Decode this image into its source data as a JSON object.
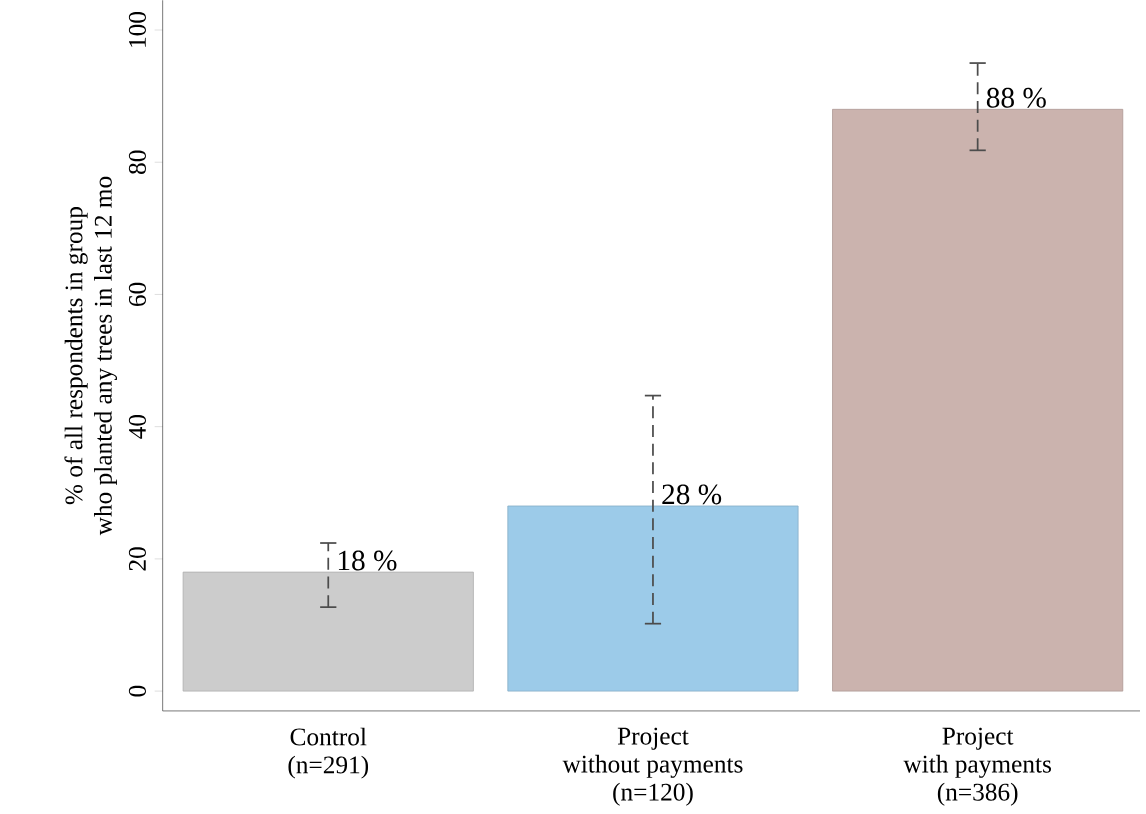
{
  "chart_data": {
    "type": "bar",
    "ylabel": "% of all respondents in group\nwho planted any trees in last 12 mo",
    "categories": [
      "Control\n(n=291)",
      "Project\nwithout payments\n(n=120)",
      "Project\nwith payments\n(n=386)"
    ],
    "values": [
      18,
      28,
      88
    ],
    "colors": [
      "#cccccc",
      "#9ccbe9",
      "#cbb3ae"
    ],
    "errors": [
      [
        12.7,
        22.4
      ],
      [
        10.2,
        44.7
      ],
      [
        81.8,
        95.0
      ]
    ],
    "value_labels": [
      "18 %",
      "28 %",
      "88 %"
    ],
    "ylim": [
      -3,
      104.5
    ],
    "yticks": [
      0,
      20,
      40,
      60,
      80,
      100
    ],
    "grid": false
  }
}
